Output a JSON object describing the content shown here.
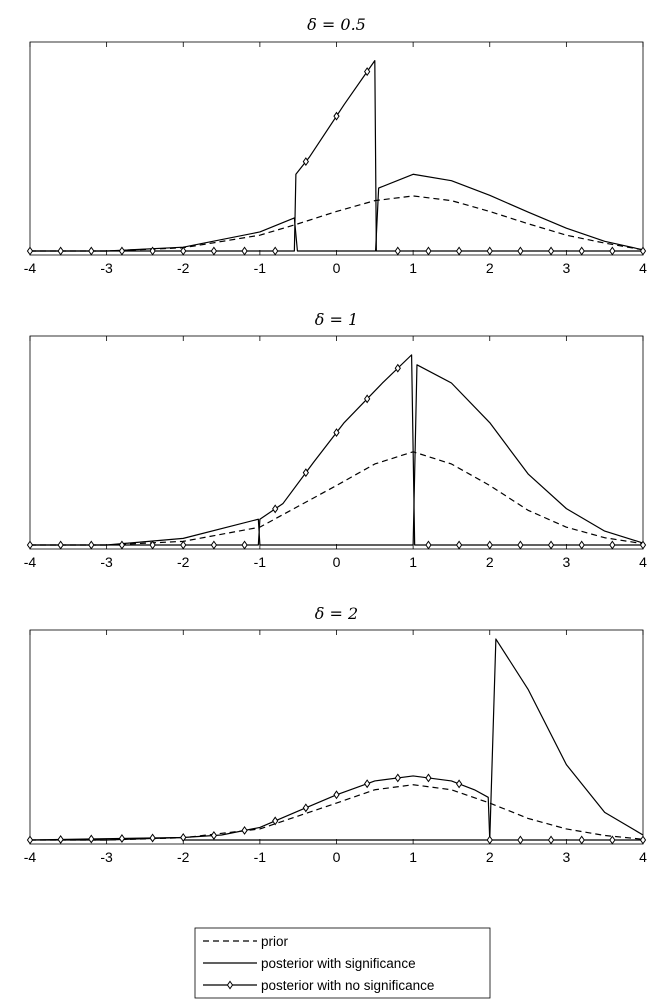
{
  "chart_data": [
    {
      "type": "line",
      "title": "δ = 0.5",
      "delta": 0.5,
      "xlim": [
        -4,
        4
      ],
      "xticks": [
        "-4",
        "-3",
        "-2",
        "-1",
        "0",
        "1",
        "2",
        "3",
        "4"
      ],
      "yticks": [],
      "grid": false,
      "series": [
        {
          "name": "prior",
          "style": "dashed",
          "x": [
            -4,
            -3,
            -2,
            -1,
            -0.5,
            0,
            0.5,
            1,
            1.5,
            2,
            2.5,
            3,
            3.5,
            4
          ],
          "y": [
            0.0,
            0.0,
            0.011,
            0.054,
            0.093,
            0.135,
            0.172,
            0.188,
            0.172,
            0.135,
            0.093,
            0.054,
            0.027,
            0.004
          ]
        },
        {
          "name": "posterior with significance",
          "style": "solid",
          "x": [
            -4,
            -3,
            -2,
            -1,
            -0.55,
            -0.51,
            0.49,
            0.51,
            0.55,
            1,
            1.5,
            2,
            2.5,
            3,
            3.5,
            4
          ],
          "y": [
            0.0,
            0.0,
            0.013,
            0.065,
            0.113,
            0.0,
            0.0,
            0.0,
            0.215,
            0.262,
            0.24,
            0.19,
            0.133,
            0.078,
            0.033,
            0.004
          ]
        },
        {
          "name": "posterior with no significance",
          "style": "solid-diamond",
          "x": [
            -4,
            -1,
            -0.55,
            -0.53,
            -0.35,
            0.1,
            0.5,
            0.52,
            0.55,
            4
          ],
          "y": [
            0.0,
            0.0,
            0.0,
            0.262,
            0.322,
            0.5,
            0.65,
            0.0,
            0.0,
            0.0
          ]
        }
      ]
    },
    {
      "type": "line",
      "title": "δ = 1",
      "delta": 1,
      "xlim": [
        -4,
        4
      ],
      "xticks": [
        "-4",
        "-3",
        "-2",
        "-1",
        "0",
        "1",
        "2",
        "3",
        "4"
      ],
      "yticks": [],
      "grid": false,
      "series": [
        {
          "name": "prior",
          "style": "dashed",
          "x": [
            -4,
            -3,
            -2,
            -1,
            0,
            0.5,
            1,
            1.5,
            2,
            2.5,
            3,
            3.5,
            4
          ],
          "y": [
            0.0,
            0.0,
            0.011,
            0.054,
            0.18,
            0.245,
            0.282,
            0.245,
            0.18,
            0.105,
            0.054,
            0.022,
            0.004
          ]
        },
        {
          "name": "posterior with significance",
          "style": "solid",
          "x": [
            -4,
            -3,
            -2,
            -1.02,
            -1.0,
            1.0,
            1.05,
            1.5,
            2,
            2.5,
            3,
            3.5,
            4
          ],
          "y": [
            0.0,
            0.0,
            0.02,
            0.078,
            0.0,
            0.0,
            0.545,
            0.49,
            0.37,
            0.215,
            0.11,
            0.042,
            0.006
          ]
        },
        {
          "name": "posterior with no significance",
          "style": "solid-diamond",
          "x": [
            -4,
            -2,
            -1.02,
            -1.0,
            -0.7,
            -0.3,
            0.1,
            0.6,
            0.98,
            1.02,
            4
          ],
          "y": [
            0.0,
            0.0,
            0.0,
            0.078,
            0.125,
            0.25,
            0.37,
            0.49,
            0.575,
            0.0,
            0.0
          ]
        }
      ]
    },
    {
      "type": "line",
      "title": "δ = 2",
      "delta": 2,
      "xlim": [
        -4,
        4
      ],
      "xticks": [
        "-4",
        "-3",
        "-2",
        "-1",
        "0",
        "1",
        "2",
        "3",
        "4"
      ],
      "yticks": [],
      "grid": false,
      "series": [
        {
          "name": "prior",
          "style": "dashed",
          "x": [
            -4,
            -3,
            -2,
            -1,
            0,
            0.5,
            1,
            1.5,
            2,
            2.5,
            3,
            3.5,
            4
          ],
          "y": [
            0.0,
            0.0,
            0.009,
            0.044,
            0.147,
            0.2,
            0.22,
            0.2,
            0.147,
            0.086,
            0.044,
            0.018,
            0.003
          ]
        },
        {
          "name": "posterior with significance",
          "style": "solid",
          "x": [
            -4,
            -3,
            -2.02,
            -2.0,
            2.0,
            2.08,
            2.5,
            3,
            3.5,
            4
          ],
          "y": [
            0.0,
            0.0,
            0.01,
            0.0,
            0.0,
            0.8,
            0.6,
            0.3,
            0.11,
            0.02
          ]
        },
        {
          "name": "posterior with no significance",
          "style": "solid-diamond",
          "x": [
            -4,
            -2,
            -1.5,
            -1,
            -0.5,
            0,
            0.5,
            1,
            1.5,
            1.8,
            1.98,
            2.0,
            4
          ],
          "y": [
            0.0,
            0.01,
            0.02,
            0.05,
            0.115,
            0.18,
            0.235,
            0.255,
            0.235,
            0.2,
            0.17,
            0.0,
            0.0
          ]
        }
      ]
    }
  ],
  "legend": {
    "placement": "bottom-center",
    "items": [
      {
        "label": "prior",
        "style": "dashed"
      },
      {
        "label": "posterior with significance",
        "style": "solid"
      },
      {
        "label": "posterior with no significance",
        "style": "solid-diamond"
      }
    ]
  }
}
